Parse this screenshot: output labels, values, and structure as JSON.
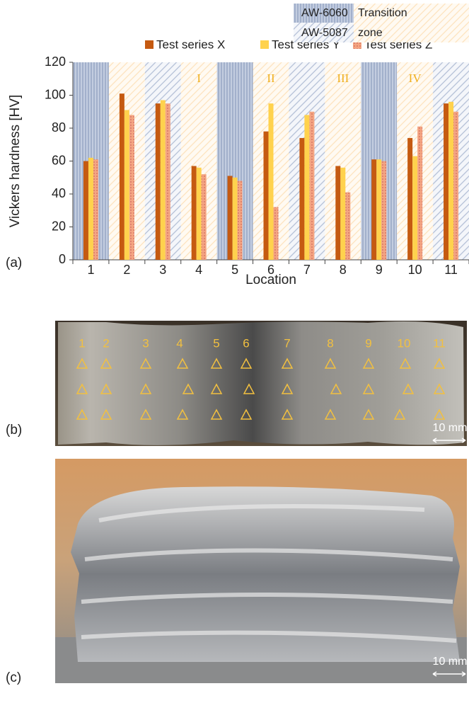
{
  "chart_data": {
    "type": "bar",
    "x_label": "Location",
    "y_label": "Vickers hardness [HV]",
    "categories": [
      "1",
      "2",
      "3",
      "4",
      "5",
      "6",
      "7",
      "8",
      "9",
      "10",
      "11"
    ],
    "series": [
      {
        "name": "Test series X",
        "color": "#c55a11",
        "values": [
          60,
          101,
          95,
          57,
          51,
          78,
          74,
          57,
          61,
          74,
          95
        ]
      },
      {
        "name": "Test series Y",
        "color": "#ffd24d",
        "values": [
          62,
          91,
          97,
          56,
          50,
          95,
          88,
          56,
          61,
          63,
          96
        ]
      },
      {
        "name": "Test series Z",
        "color": "#f4a582",
        "values": [
          61,
          88,
          95,
          52,
          48,
          32,
          90,
          41,
          60,
          81,
          90
        ]
      }
    ],
    "ylim": [
      0,
      120
    ],
    "yticks": [
      0,
      20,
      40,
      60,
      80,
      100,
      120
    ],
    "zone_legend": [
      "AW-6060",
      "AW-5087",
      "Transition zone"
    ],
    "annotations": [
      "I",
      "II",
      "III",
      "IV"
    ]
  },
  "panel_labels": [
    "(a)",
    "(b)",
    "(c)"
  ],
  "photo_b": {
    "location_labels": [
      "1",
      "2",
      "3",
      "4",
      "5",
      "6",
      "7",
      "8",
      "9",
      "10",
      "11"
    ],
    "scale": "10 mm"
  },
  "photo_c": {
    "scale": "10 mm"
  }
}
